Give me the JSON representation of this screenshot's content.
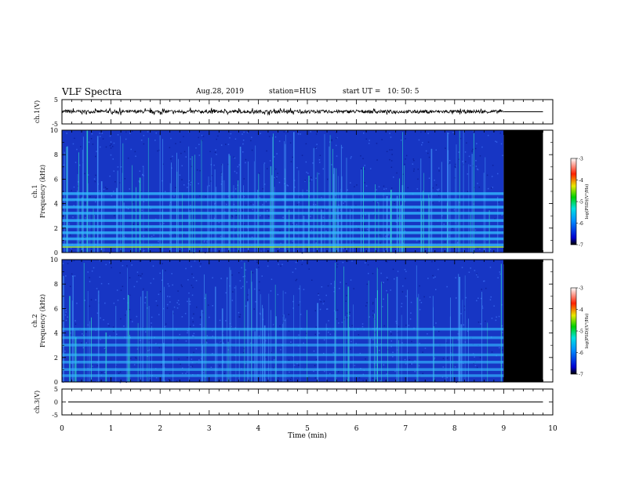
{
  "header": {
    "title": "VLF Spectra",
    "date": "Aug.28, 2019",
    "station": "station=HUS",
    "start_label": "start  UT  =",
    "start_value": "10: 50: 5"
  },
  "chart_data": [
    {
      "type": "line",
      "panel": "ch1-waveform",
      "ylabel": "ch.1(V)",
      "ylim": [
        -5,
        5
      ],
      "ytick_labels": [
        "5",
        "-5"
      ],
      "x_range_min": [
        0,
        10
      ],
      "data_end_min": 9.0,
      "baseline_value": 0.0,
      "noise_band_v": [
        -1.0,
        1.2
      ]
    },
    {
      "type": "heatmap",
      "panel": "ch1-spectrogram",
      "ylabel": "ch.1 Frequency (kHz)",
      "ylim": [
        0,
        10
      ],
      "ytick_labels": [
        "0",
        "2",
        "4",
        "6",
        "8",
        "10"
      ],
      "x_range_min": [
        0,
        10
      ],
      "data_end_min": 9.0,
      "bands_khz": [
        0.6,
        1.1,
        1.6,
        2.1,
        2.6,
        3.2,
        3.7,
        4.3,
        4.8
      ],
      "colorbar": {
        "label": "log(PSD)(V²/Hz)",
        "range": [
          -7,
          -3
        ],
        "ticks": [
          "-3",
          "-4",
          "-5",
          "-6",
          "-7"
        ]
      }
    },
    {
      "type": "heatmap",
      "panel": "ch2-spectrogram",
      "ylabel": "ch.2 Frequency (kHz)",
      "ylim": [
        0,
        10
      ],
      "ytick_labels": [
        "0",
        "2",
        "4",
        "6",
        "8",
        "10"
      ],
      "x_range_min": [
        0,
        10
      ],
      "data_end_min": 9.0,
      "bands_khz": [
        0.5,
        1.0,
        1.6,
        2.2,
        3.0,
        3.6,
        4.3
      ],
      "colorbar": {
        "label": "log(PSD)(V²/Hz)",
        "range": [
          -7,
          -3
        ],
        "ticks": [
          "-3",
          "-4",
          "-5",
          "-6",
          "-7"
        ]
      }
    },
    {
      "type": "line",
      "panel": "ch3-waveform",
      "ylabel": "ch.3(V)",
      "ylim": [
        -5,
        5
      ],
      "ytick_labels": [
        "5",
        "0",
        "-5"
      ],
      "x_range_min": [
        0,
        10
      ],
      "data_end_min": 9.8,
      "baseline_value": 0.0
    }
  ],
  "xaxis": {
    "label": "Time  (min)",
    "ticks": [
      "0",
      "1",
      "2",
      "3",
      "4",
      "5",
      "6",
      "7",
      "8",
      "9",
      "10"
    ]
  },
  "colors": {
    "spectro_bg": "#1736c4",
    "no_data": "#000000",
    "bands": "#33b8ff",
    "bursts": "#2fd8c9",
    "axis": "#000000"
  }
}
